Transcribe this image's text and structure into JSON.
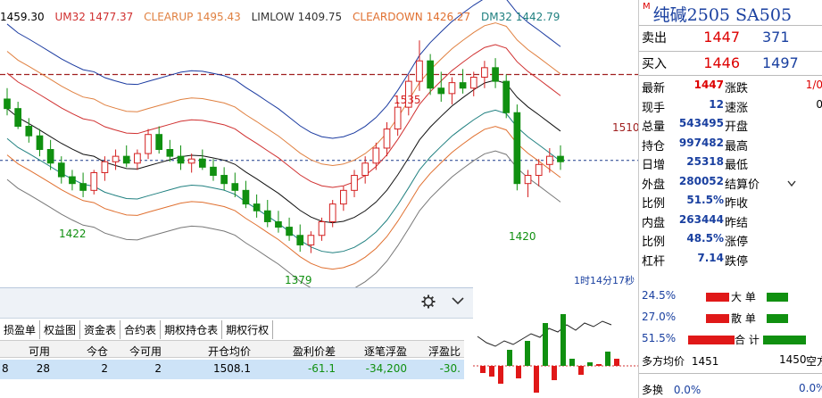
{
  "legend": {
    "price": "1459.30",
    "items": [
      {
        "text": "UM32 1477.37",
        "color": "#d03030"
      },
      {
        "text": "CLEARUP 1495.43",
        "color": "#e08040"
      },
      {
        "text": "LIMLOW 1409.75",
        "color": "#333333"
      },
      {
        "text": "CLEARDOWN 1426.27",
        "color": "#e07030"
      },
      {
        "text": "DM32 1442.79",
        "color": "#208080"
      }
    ]
  },
  "chart_labels": {
    "high": "1535",
    "low": "1379",
    "left_low": "1422",
    "right_low": "1420",
    "ref_line": "1510",
    "time": "1时14分17秒"
  },
  "chart_data": {
    "type": "candlestick",
    "up_color": "#d42020",
    "down_color": "#109010",
    "candles": [
      [
        1492,
        1500,
        1480,
        1485
      ],
      [
        1485,
        1490,
        1470,
        1472
      ],
      [
        1472,
        1478,
        1460,
        1465
      ],
      [
        1465,
        1470,
        1450,
        1455
      ],
      [
        1455,
        1462,
        1440,
        1445
      ],
      [
        1445,
        1450,
        1430,
        1435
      ],
      [
        1435,
        1440,
        1425,
        1430
      ],
      [
        1430,
        1438,
        1420,
        1425
      ],
      [
        1425,
        1440,
        1422,
        1438
      ],
      [
        1438,
        1450,
        1432,
        1446
      ],
      [
        1446,
        1455,
        1440,
        1450
      ],
      [
        1450,
        1458,
        1442,
        1445
      ],
      [
        1445,
        1455,
        1440,
        1452
      ],
      [
        1452,
        1470,
        1448,
        1466
      ],
      [
        1466,
        1472,
        1452,
        1455
      ],
      [
        1455,
        1462,
        1446,
        1450
      ],
      [
        1450,
        1458,
        1440,
        1445
      ],
      [
        1445,
        1452,
        1438,
        1448
      ],
      [
        1448,
        1455,
        1440,
        1442
      ],
      [
        1442,
        1448,
        1432,
        1436
      ],
      [
        1436,
        1442,
        1425,
        1430
      ],
      [
        1430,
        1438,
        1420,
        1425
      ],
      [
        1425,
        1432,
        1412,
        1415
      ],
      [
        1415,
        1422,
        1405,
        1410
      ],
      [
        1410,
        1418,
        1398,
        1402
      ],
      [
        1402,
        1410,
        1394,
        1398
      ],
      [
        1398,
        1405,
        1388,
        1392
      ],
      [
        1392,
        1400,
        1380,
        1385
      ],
      [
        1385,
        1395,
        1379,
        1392
      ],
      [
        1392,
        1405,
        1388,
        1402
      ],
      [
        1402,
        1418,
        1398,
        1415
      ],
      [
        1415,
        1428,
        1410,
        1425
      ],
      [
        1425,
        1440,
        1420,
        1436
      ],
      [
        1436,
        1450,
        1430,
        1445
      ],
      [
        1445,
        1460,
        1440,
        1456
      ],
      [
        1456,
        1475,
        1450,
        1470
      ],
      [
        1470,
        1490,
        1465,
        1486
      ],
      [
        1486,
        1510,
        1480,
        1505
      ],
      [
        1505,
        1535,
        1498,
        1520
      ],
      [
        1520,
        1525,
        1495,
        1500
      ],
      [
        1500,
        1512,
        1490,
        1496
      ],
      [
        1496,
        1508,
        1488,
        1504
      ],
      [
        1504,
        1514,
        1496,
        1500
      ],
      [
        1500,
        1512,
        1494,
        1508
      ],
      [
        1508,
        1520,
        1500,
        1515
      ],
      [
        1515,
        1522,
        1500,
        1505
      ],
      [
        1505,
        1510,
        1478,
        1482
      ],
      [
        1482,
        1488,
        1425,
        1430
      ],
      [
        1430,
        1440,
        1420,
        1436
      ],
      [
        1436,
        1448,
        1428,
        1444
      ],
      [
        1444,
        1456,
        1438,
        1450
      ],
      [
        1450,
        1458,
        1440,
        1446
      ]
    ]
  },
  "quote": {
    "code": "M",
    "title": "纯碱2505  SA505",
    "sell": {
      "label": "卖出",
      "price": "1447",
      "vol": "371"
    },
    "buy": {
      "label": "买入",
      "price": "1446",
      "vol": "1497"
    },
    "rows": [
      {
        "l": "最新",
        "v": "1447",
        "vc": "#d00",
        "l2": "涨跌",
        "v2": "1/0",
        "v2c": "#d00"
      },
      {
        "l": "现手",
        "v": "12",
        "vc": "#1a40a0",
        "l2": "速涨",
        "v2": "0",
        "v2c": "#000"
      },
      {
        "l": "总量",
        "v": "543495",
        "vc": "#1a40a0",
        "l2": "开盘",
        "v2": "",
        "v2c": "#000"
      },
      {
        "l": "持仓",
        "v": "997482",
        "vc": "#1a40a0",
        "l2": "最高",
        "v2": "",
        "v2c": "#000"
      },
      {
        "l": "日增",
        "v": "25318",
        "vc": "#1a40a0",
        "l2": "最低",
        "v2": "",
        "v2c": "#000"
      },
      {
        "l": "外盘",
        "v": "280052",
        "vc": "#1a40a0",
        "l2": "结算价",
        "v2": "",
        "v2c": "#000"
      },
      {
        "l": "比例",
        "v": "51.5%",
        "vc": "#1a40a0",
        "l2": "昨收",
        "v2": "",
        "v2c": "#000"
      },
      {
        "l": "内盘",
        "v": "263444",
        "vc": "#1a40a0",
        "l2": "昨结",
        "v2": "",
        "v2c": "#000"
      },
      {
        "l": "比例",
        "v": "48.5%",
        "vc": "#1a40a0",
        "l2": "涨停",
        "v2": "",
        "v2c": "#000"
      },
      {
        "l": "杠杆",
        "v": "7.14",
        "vc": "#1a40a0",
        "l2": "跌停",
        "v2": "",
        "v2c": "#000"
      }
    ]
  },
  "positions": {
    "tabs": [
      "损盈单",
      "权益图",
      "资金表",
      "合约表",
      "期权持仓表",
      "期权行权"
    ],
    "headers": [
      "可用",
      "今仓",
      "今可用",
      "开仓均价",
      "盈利价差",
      "逐笔浮盈",
      "浮盈比"
    ],
    "row": [
      "28",
      "2",
      "2",
      "1508.1",
      "-61.1",
      "-34,200",
      "-30."
    ],
    "row_prefix": "8"
  },
  "flow": {
    "rows": [
      {
        "pct": "24.5%",
        "label": "大 单"
      },
      {
        "pct": "27.0%",
        "label": "散 单"
      },
      {
        "pct": "51.5%",
        "label": "合 计"
      }
    ],
    "avg_label": "多方均价",
    "avg_long": "1451",
    "avg_short_val": "1450",
    "avg_short_label": "空方",
    "swap_label": "多换",
    "swap_val": "0.0%",
    "swap_val2": "0.0%"
  }
}
